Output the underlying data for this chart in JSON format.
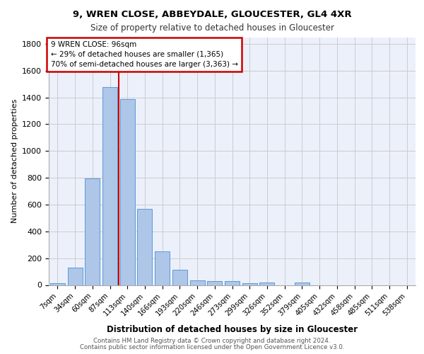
{
  "title1": "9, WREN CLOSE, ABBEYDALE, GLOUCESTER, GL4 4XR",
  "title2": "Size of property relative to detached houses in Gloucester",
  "xlabel": "Distribution of detached houses by size in Gloucester",
  "ylabel": "Number of detached properties",
  "categories": [
    "7sqm",
    "34sqm",
    "60sqm",
    "87sqm",
    "113sqm",
    "140sqm",
    "166sqm",
    "193sqm",
    "220sqm",
    "246sqm",
    "273sqm",
    "299sqm",
    "326sqm",
    "352sqm",
    "379sqm",
    "405sqm",
    "432sqm",
    "458sqm",
    "485sqm",
    "511sqm",
    "538sqm"
  ],
  "values": [
    15,
    130,
    795,
    1480,
    1385,
    570,
    250,
    115,
    35,
    30,
    30,
    15,
    20,
    0,
    20,
    0,
    0,
    0,
    0,
    0,
    0
  ],
  "bar_color": "#aec6e8",
  "bar_edgecolor": "#5b9bd5",
  "property_line_label": "9 WREN CLOSE: 96sqm",
  "annotation_line1": "← 29% of detached houses are smaller (1,365)",
  "annotation_line2": "70% of semi-detached houses are larger (3,363) →",
  "annotation_box_color": "#ffffff",
  "annotation_box_edgecolor": "#cc0000",
  "annotation_text_color": "#000000",
  "vline_color": "#cc0000",
  "grid_color": "#cccccc",
  "background_color": "#ecf0fb",
  "ylim": [
    0,
    1850
  ],
  "yticks": [
    0,
    200,
    400,
    600,
    800,
    1000,
    1200,
    1400,
    1600,
    1800
  ],
  "footer1": "Contains HM Land Registry data © Crown copyright and database right 2024.",
  "footer2": "Contains public sector information licensed under the Open Government Licence v3.0.",
  "vline_x_index": 3.5
}
